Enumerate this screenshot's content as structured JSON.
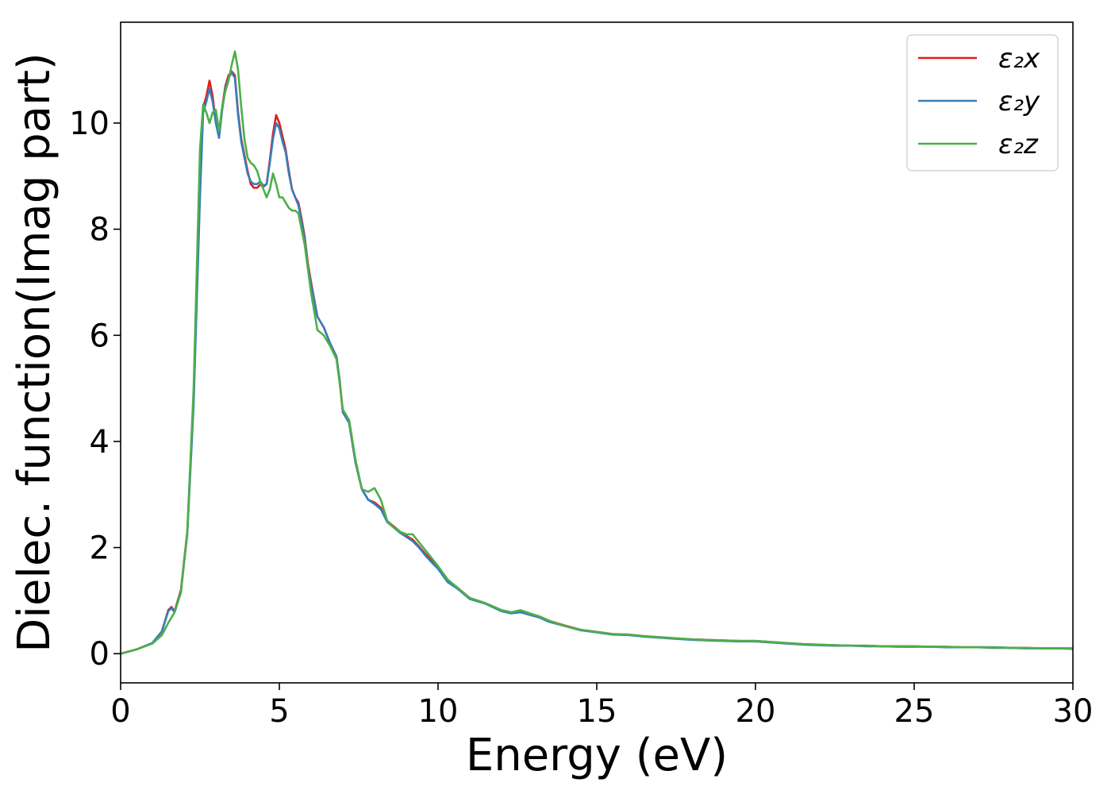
{
  "chart_data": {
    "type": "line",
    "title": "",
    "xlabel": "Energy (eV)",
    "ylabel": "Dielec. function(Imag part)",
    "xlim": [
      0,
      30
    ],
    "ylim": [
      -0.55,
      11.9
    ],
    "xticks": [
      0,
      5,
      10,
      15,
      20,
      25,
      30
    ],
    "yticks": [
      0,
      2,
      4,
      6,
      8,
      10
    ],
    "grid": false,
    "legend_position": "top-right",
    "series": [
      {
        "name": "ε₂x",
        "color": "#e41a1c",
        "x": [
          0,
          0.5,
          1.0,
          1.3,
          1.5,
          1.6,
          1.7,
          1.9,
          2.1,
          2.3,
          2.5,
          2.6,
          2.7,
          2.8,
          2.9,
          3.0,
          3.1,
          3.2,
          3.3,
          3.4,
          3.5,
          3.6,
          3.7,
          3.8,
          3.9,
          4.0,
          4.1,
          4.2,
          4.3,
          4.4,
          4.5,
          4.6,
          4.7,
          4.8,
          4.9,
          5.0,
          5.1,
          5.2,
          5.3,
          5.4,
          5.5,
          5.6,
          5.7,
          5.8,
          5.9,
          6.0,
          6.2,
          6.4,
          6.6,
          6.8,
          6.9,
          7.0,
          7.2,
          7.4,
          7.6,
          7.8,
          8.0,
          8.2,
          8.4,
          8.6,
          8.8,
          9.0,
          9.2,
          9.4,
          9.6,
          9.8,
          10.0,
          10.3,
          10.6,
          11.0,
          11.5,
          12.0,
          12.3,
          12.6,
          12.9,
          13.2,
          13.5,
          14.0,
          14.5,
          15.0,
          15.5,
          16.0,
          16.5,
          17.0,
          17.5,
          18.0,
          18.5,
          19.0,
          19.5,
          20.0,
          20.5,
          21.0,
          21.5,
          22.0,
          22.5,
          23.0,
          23.5,
          24.0,
          24.5,
          25.0,
          25.5,
          26.0,
          26.5,
          27.0,
          27.5,
          28.0,
          28.5,
          29.0,
          29.5,
          30.0
        ],
        "y": [
          0.0,
          0.08,
          0.2,
          0.42,
          0.82,
          0.88,
          0.8,
          1.2,
          2.3,
          4.8,
          8.8,
          10.3,
          10.5,
          10.8,
          10.5,
          10.0,
          9.75,
          10.3,
          10.7,
          10.9,
          10.97,
          10.9,
          10.2,
          9.7,
          9.4,
          9.1,
          8.85,
          8.78,
          8.78,
          8.84,
          8.8,
          8.85,
          9.3,
          9.8,
          10.15,
          10.0,
          9.75,
          9.5,
          9.1,
          8.75,
          8.6,
          8.5,
          8.2,
          7.85,
          7.35,
          7.0,
          6.35,
          6.15,
          5.85,
          5.6,
          5.15,
          4.55,
          4.35,
          3.6,
          3.1,
          2.9,
          2.85,
          2.75,
          2.5,
          2.4,
          2.3,
          2.22,
          2.15,
          2.02,
          1.88,
          1.75,
          1.62,
          1.37,
          1.25,
          1.05,
          0.95,
          0.82,
          0.78,
          0.8,
          0.75,
          0.7,
          0.62,
          0.53,
          0.45,
          0.41,
          0.37,
          0.36,
          0.33,
          0.31,
          0.29,
          0.27,
          0.26,
          0.25,
          0.24,
          0.24,
          0.22,
          0.2,
          0.18,
          0.17,
          0.16,
          0.15,
          0.15,
          0.14,
          0.14,
          0.14,
          0.13,
          0.13,
          0.12,
          0.12,
          0.12,
          0.11,
          0.11,
          0.1,
          0.1,
          0.1
        ]
      },
      {
        "name": "ε₂y",
        "color": "#377eb8",
        "x": [
          0,
          0.5,
          1.0,
          1.3,
          1.5,
          1.6,
          1.7,
          1.9,
          2.1,
          2.3,
          2.5,
          2.6,
          2.7,
          2.8,
          2.9,
          3.0,
          3.1,
          3.2,
          3.3,
          3.4,
          3.5,
          3.6,
          3.7,
          3.8,
          3.9,
          4.0,
          4.1,
          4.2,
          4.3,
          4.4,
          4.5,
          4.6,
          4.7,
          4.8,
          4.9,
          5.0,
          5.1,
          5.2,
          5.3,
          5.4,
          5.5,
          5.6,
          5.7,
          5.8,
          5.9,
          6.0,
          6.2,
          6.4,
          6.6,
          6.8,
          6.9,
          7.0,
          7.2,
          7.4,
          7.6,
          7.8,
          8.0,
          8.2,
          8.4,
          8.6,
          8.8,
          9.0,
          9.2,
          9.4,
          9.6,
          9.8,
          10.0,
          10.3,
          10.6,
          11.0,
          11.5,
          12.0,
          12.3,
          12.6,
          12.9,
          13.2,
          13.5,
          14.0,
          14.5,
          15.0,
          15.5,
          16.0,
          16.5,
          17.0,
          17.5,
          18.0,
          18.5,
          19.0,
          19.5,
          20.0,
          20.5,
          21.0,
          21.5,
          22.0,
          22.5,
          23.0,
          23.5,
          24.0,
          24.5,
          25.0,
          25.5,
          26.0,
          26.5,
          27.0,
          27.5,
          28.0,
          28.5,
          29.0,
          29.5,
          30.0
        ],
        "y": [
          0.0,
          0.08,
          0.2,
          0.42,
          0.8,
          0.86,
          0.78,
          1.18,
          2.25,
          4.7,
          8.6,
          10.2,
          10.4,
          10.65,
          10.4,
          10.0,
          9.72,
          10.25,
          10.65,
          10.85,
          10.95,
          10.85,
          10.15,
          9.65,
          9.35,
          9.05,
          8.9,
          8.85,
          8.85,
          8.9,
          8.82,
          8.85,
          9.25,
          9.7,
          10.0,
          9.9,
          9.65,
          9.45,
          9.05,
          8.75,
          8.6,
          8.45,
          8.15,
          7.8,
          7.3,
          6.95,
          6.35,
          6.15,
          5.85,
          5.6,
          5.15,
          4.55,
          4.35,
          3.6,
          3.1,
          2.9,
          2.82,
          2.72,
          2.48,
          2.38,
          2.28,
          2.2,
          2.12,
          2.0,
          1.85,
          1.72,
          1.6,
          1.35,
          1.23,
          1.03,
          0.94,
          0.8,
          0.76,
          0.78,
          0.73,
          0.68,
          0.6,
          0.52,
          0.44,
          0.4,
          0.36,
          0.35,
          0.32,
          0.3,
          0.28,
          0.26,
          0.25,
          0.24,
          0.23,
          0.23,
          0.21,
          0.19,
          0.17,
          0.16,
          0.15,
          0.15,
          0.14,
          0.14,
          0.13,
          0.13,
          0.13,
          0.12,
          0.12,
          0.12,
          0.11,
          0.11,
          0.1,
          0.1,
          0.1,
          0.09
        ]
      },
      {
        "name": "ε₂z",
        "color": "#4daf4a",
        "x": [
          0,
          0.5,
          1.0,
          1.3,
          1.5,
          1.6,
          1.7,
          1.9,
          2.1,
          2.3,
          2.5,
          2.6,
          2.7,
          2.8,
          2.9,
          3.0,
          3.1,
          3.2,
          3.3,
          3.4,
          3.5,
          3.6,
          3.7,
          3.8,
          3.9,
          4.0,
          4.1,
          4.2,
          4.3,
          4.4,
          4.5,
          4.6,
          4.7,
          4.8,
          4.9,
          5.0,
          5.1,
          5.2,
          5.3,
          5.4,
          5.5,
          5.6,
          5.7,
          5.8,
          5.9,
          6.0,
          6.2,
          6.4,
          6.6,
          6.8,
          6.9,
          7.0,
          7.2,
          7.4,
          7.6,
          7.8,
          8.0,
          8.2,
          8.4,
          8.6,
          8.8,
          9.0,
          9.2,
          9.4,
          9.6,
          9.8,
          10.0,
          10.3,
          10.6,
          11.0,
          11.5,
          12.0,
          12.3,
          12.6,
          12.9,
          13.2,
          13.5,
          14.0,
          14.5,
          15.0,
          15.5,
          16.0,
          16.5,
          17.0,
          17.5,
          18.0,
          18.5,
          19.0,
          19.5,
          20.0,
          20.5,
          21.0,
          21.5,
          22.0,
          22.5,
          23.0,
          23.5,
          24.0,
          24.5,
          25.0,
          25.5,
          26.0,
          26.5,
          27.0,
          27.5,
          28.0,
          28.5,
          29.0,
          29.5,
          30.0
        ],
        "y": [
          0.0,
          0.08,
          0.19,
          0.35,
          0.58,
          0.68,
          0.78,
          1.15,
          2.3,
          5.0,
          9.5,
          10.35,
          10.2,
          10.0,
          10.2,
          10.25,
          9.85,
          10.3,
          10.6,
          10.8,
          11.1,
          11.35,
          11.0,
          10.3,
          9.7,
          9.35,
          9.25,
          9.2,
          9.1,
          8.9,
          8.75,
          8.6,
          8.75,
          9.05,
          8.85,
          8.6,
          8.6,
          8.5,
          8.4,
          8.35,
          8.35,
          8.3,
          8.0,
          7.7,
          7.25,
          6.8,
          6.1,
          6.0,
          5.8,
          5.55,
          5.1,
          4.6,
          4.4,
          3.65,
          3.1,
          3.05,
          3.12,
          2.9,
          2.5,
          2.38,
          2.3,
          2.25,
          2.25,
          2.1,
          1.95,
          1.8,
          1.65,
          1.4,
          1.25,
          1.05,
          0.95,
          0.82,
          0.78,
          0.82,
          0.76,
          0.7,
          0.62,
          0.52,
          0.45,
          0.41,
          0.37,
          0.36,
          0.33,
          0.31,
          0.29,
          0.27,
          0.26,
          0.25,
          0.24,
          0.24,
          0.22,
          0.2,
          0.18,
          0.17,
          0.16,
          0.15,
          0.15,
          0.14,
          0.14,
          0.14,
          0.13,
          0.13,
          0.12,
          0.12,
          0.12,
          0.11,
          0.11,
          0.1,
          0.1,
          0.1
        ]
      }
    ]
  }
}
